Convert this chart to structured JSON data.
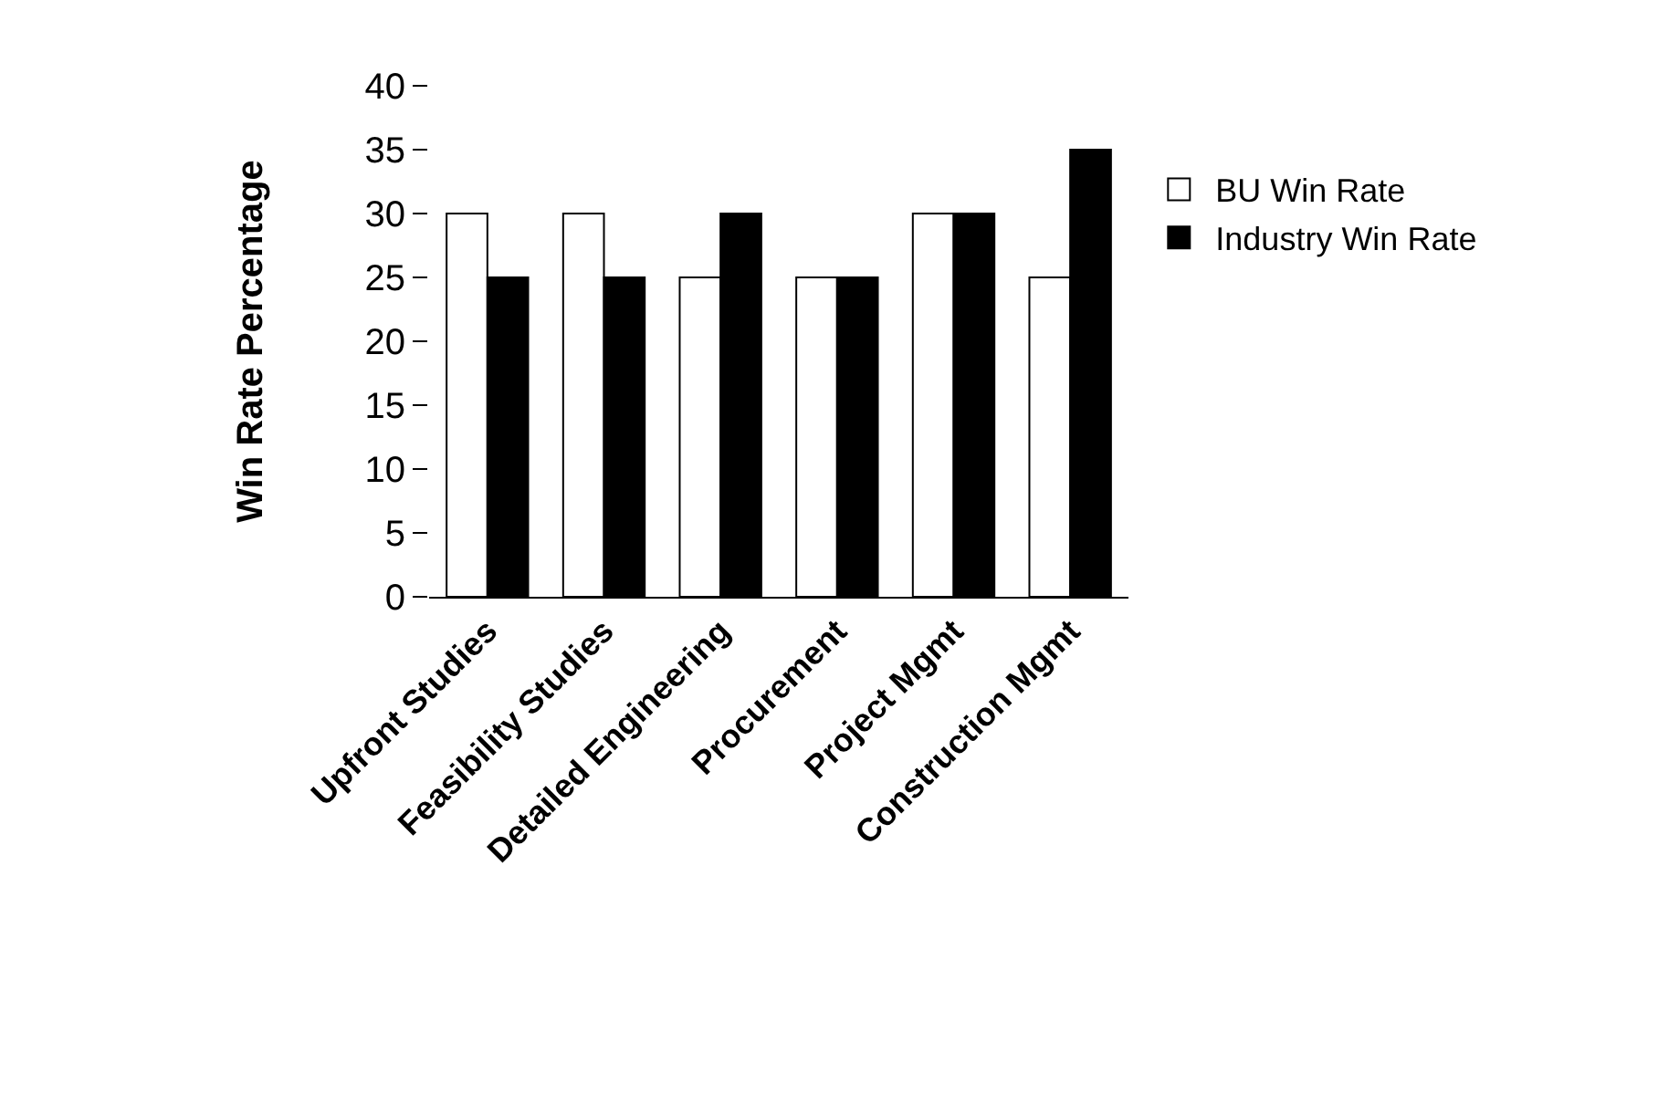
{
  "chart_data": {
    "type": "bar",
    "ylabel": "Win Rate Percentage",
    "categories": [
      "Upfront Studies",
      "Feasibility Studies",
      "Detailed Engineering",
      "Procurement",
      "Project Mgmt",
      "Construction Mgmt"
    ],
    "series": [
      {
        "name": "BU Win Rate",
        "color": "#ffffff",
        "values": [
          30,
          30,
          25,
          25,
          30,
          25
        ]
      },
      {
        "name": "Industry Win Rate",
        "color": "#000000",
        "values": [
          25,
          25,
          30,
          25,
          30,
          35
        ]
      }
    ],
    "ylim": [
      0,
      40
    ],
    "yticks": [
      0,
      5,
      10,
      15,
      20,
      25,
      30,
      35,
      40
    ],
    "grid": false,
    "legend": "right"
  }
}
